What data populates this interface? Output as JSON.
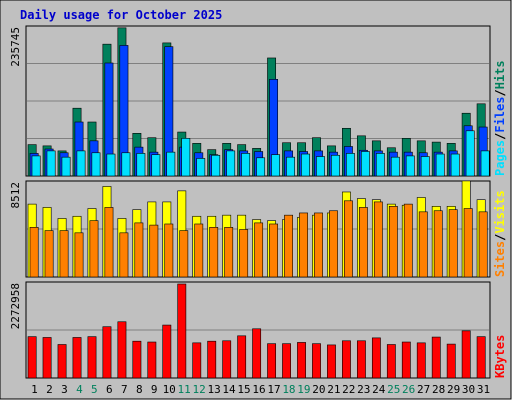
{
  "title": "Daily usage for October 2025",
  "colors": {
    "frame_bg": "#C0C0C0",
    "plot_bg": "#C0C0C0",
    "title": "#0000CC",
    "grid": "#808080",
    "hits": "#00805C",
    "files": "#0040FF",
    "pages": "#00E0FF",
    "visits": "#FFFF00",
    "sites": "#FF8000",
    "kbytes": "#FF0000",
    "weekend": "#00805C",
    "weekday": "#000000"
  },
  "chart_data": [
    {
      "type": "bar",
      "name": "hits_files_pages",
      "ymax": 235745,
      "ymax_label": "235745",
      "legend": [
        "Pages",
        "/",
        "Files",
        "/",
        "Hits"
      ],
      "categories": [
        "1",
        "2",
        "3",
        "4",
        "5",
        "6",
        "7",
        "8",
        "9",
        "10",
        "11",
        "12",
        "13",
        "14",
        "15",
        "16",
        "17",
        "18",
        "19",
        "20",
        "21",
        "22",
        "23",
        "24",
        "25",
        "26",
        "27",
        "28",
        "29",
        "30",
        "31"
      ],
      "series": [
        {
          "name": "Hits",
          "values": [
            50000,
            48000,
            40000,
            108000,
            86000,
            210000,
            236000,
            68000,
            61000,
            212000,
            70000,
            52000,
            42000,
            52000,
            50000,
            44000,
            188000,
            53000,
            53000,
            61000,
            48000,
            76000,
            64000,
            56000,
            45000,
            60000,
            56000,
            54000,
            52000,
            100000,
            115000
          ]
        },
        {
          "name": "Files",
          "values": [
            36000,
            43000,
            37000,
            86000,
            56000,
            180000,
            208000,
            46000,
            38000,
            206000,
            46000,
            37000,
            34000,
            42000,
            40000,
            39000,
            154000,
            40000,
            39000,
            40000,
            38000,
            47000,
            41000,
            40000,
            38000,
            38000,
            37000,
            38000,
            40000,
            80000,
            78000
          ]
        },
        {
          "name": "Pages",
          "values": [
            32000,
            40000,
            30000,
            40000,
            37000,
            35000,
            37000,
            36000,
            34000,
            38000,
            60000,
            28000,
            33000,
            40000,
            36000,
            29000,
            34000,
            30000,
            35000,
            31000,
            33000,
            36000,
            39000,
            36000,
            30000,
            32000,
            31000,
            35000,
            35000,
            72000,
            40000
          ]
        }
      ]
    },
    {
      "type": "bar",
      "name": "sites_visits",
      "ymax": 8512,
      "ymax_label": "8512",
      "legend": [
        "Sites",
        "/",
        "Visits"
      ],
      "categories": [
        "1",
        "2",
        "3",
        "4",
        "5",
        "6",
        "7",
        "8",
        "9",
        "10",
        "11",
        "12",
        "13",
        "14",
        "15",
        "16",
        "17",
        "18",
        "19",
        "20",
        "21",
        "22",
        "23",
        "24",
        "25",
        "26",
        "27",
        "28",
        "29",
        "30",
        "31"
      ],
      "series": [
        {
          "name": "Visits",
          "values": [
            6600,
            6300,
            5300,
            5500,
            6200,
            8200,
            5300,
            6100,
            6800,
            6800,
            7800,
            5500,
            5500,
            5600,
            5600,
            5200,
            5100,
            5200,
            5400,
            5600,
            5800,
            7700,
            7100,
            7000,
            6600,
            6500,
            7200,
            6400,
            6400,
            8700,
            7000
          ]
        },
        {
          "name": "Sites",
          "values": [
            4500,
            4200,
            4200,
            4000,
            5100,
            6300,
            4000,
            4900,
            4700,
            4800,
            4200,
            4800,
            4500,
            4500,
            4300,
            4900,
            4800,
            5600,
            5800,
            5800,
            6000,
            6900,
            6300,
            6800,
            6400,
            6600,
            5900,
            6000,
            6100,
            6200,
            5900
          ]
        }
      ]
    },
    {
      "type": "bar",
      "name": "kbytes",
      "ymax": 2272958,
      "ymax_label": "2272958",
      "legend": [
        "KBytes"
      ],
      "categories": [
        "1",
        "2",
        "3",
        "4",
        "5",
        "6",
        "7",
        "8",
        "9",
        "10",
        "11",
        "12",
        "13",
        "14",
        "15",
        "16",
        "17",
        "18",
        "19",
        "20",
        "21",
        "22",
        "23",
        "24",
        "25",
        "26",
        "27",
        "28",
        "29",
        "30",
        "31"
      ],
      "series": [
        {
          "name": "KBytes",
          "values": [
            1000000,
            980000,
            810000,
            980000,
            1000000,
            1240000,
            1360000,
            890000,
            870000,
            1280000,
            2272958,
            850000,
            890000,
            900000,
            1020000,
            1190000,
            830000,
            830000,
            860000,
            830000,
            800000,
            900000,
            900000,
            970000,
            810000,
            870000,
            850000,
            990000,
            820000,
            1140000,
            1000000
          ]
        }
      ]
    }
  ],
  "day_labels": [
    "1",
    "2",
    "3",
    "4",
    "5",
    "6",
    "7",
    "8",
    "9",
    "10",
    "11",
    "12",
    "13",
    "14",
    "15",
    "16",
    "17",
    "18",
    "19",
    "20",
    "21",
    "22",
    "23",
    "24",
    "25",
    "26",
    "27",
    "28",
    "29",
    "30",
    "31"
  ],
  "weekend_days": [
    4,
    5,
    11,
    12,
    18,
    19,
    25,
    26
  ]
}
